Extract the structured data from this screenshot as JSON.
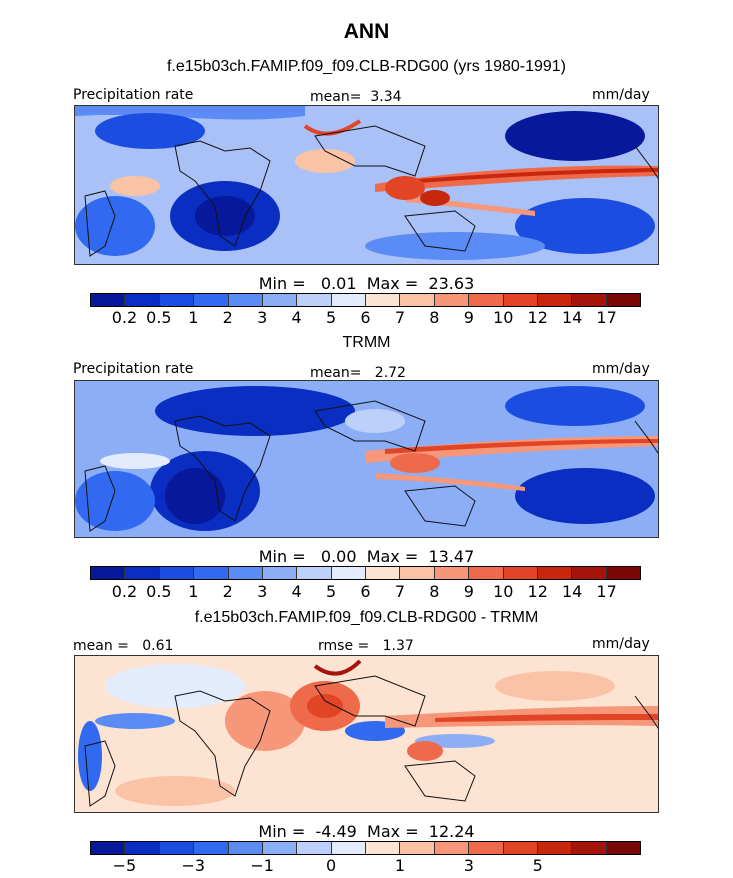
{
  "figure": {
    "title": "ANN",
    "units": "mm/day"
  },
  "colors": {
    "precip_palette": [
      "#08189a",
      "#0a2dc2",
      "#1b4ee0",
      "#3169f0",
      "#5b8cf5",
      "#8caef7",
      "#bcd0fb",
      "#e3ecfd",
      "#fde3d2",
      "#fbc3a6",
      "#f59778",
      "#ef6a4b",
      "#e24525",
      "#c9260e",
      "#a4140a",
      "#7a0606"
    ],
    "diff_palette": [
      "#08189a",
      "#0a2dc2",
      "#1b4ee0",
      "#3169f0",
      "#5b8cf5",
      "#8caef7",
      "#bcd0fb",
      "#e3ecfd",
      "#fde3d2",
      "#fbc3a6",
      "#f59778",
      "#ef6a4b",
      "#e24525",
      "#c9260e",
      "#a4140a",
      "#7a0606"
    ]
  },
  "chart_data": [
    {
      "type": "heatmap",
      "title": "f.e15b03ch.FAMIP.f09_f09.CLB-RDG00 (yrs 1980-1991)",
      "variable": "Precipitation rate",
      "mean_label": "mean=",
      "mean": "3.34",
      "units": "mm/day",
      "min_label": "Min =",
      "min": "0.01",
      "max_label": "Max =",
      "max": "23.63",
      "colorbar_ticks": [
        "0.2",
        "0.5",
        "1",
        "2",
        "3",
        "4",
        "5",
        "6",
        "7",
        "8",
        "9",
        "10",
        "12",
        "14",
        "17"
      ]
    },
    {
      "type": "heatmap",
      "title": "TRMM",
      "variable": "Precipitation rate",
      "mean_label": "mean=",
      "mean": "2.72",
      "units": "mm/day",
      "min_label": "Min =",
      "min": "0.00",
      "max_label": "Max =",
      "max": "13.47",
      "colorbar_ticks": [
        "0.2",
        "0.5",
        "1",
        "2",
        "3",
        "4",
        "5",
        "6",
        "7",
        "8",
        "9",
        "10",
        "12",
        "14",
        "17"
      ]
    },
    {
      "type": "heatmap",
      "title": "f.e15b03ch.FAMIP.f09_f09.CLB-RDG00 - TRMM",
      "mean_label": "mean =",
      "mean": "0.61",
      "rmse_label": "rmse =",
      "rmse": "1.37",
      "units": "mm/day",
      "min_label": "Min =",
      "min": "-4.49",
      "max_label": "Max =",
      "max": "12.24",
      "colorbar_ticks": [
        "−5",
        "−3",
        "−1",
        "0",
        "1",
        "3",
        "5"
      ]
    }
  ]
}
